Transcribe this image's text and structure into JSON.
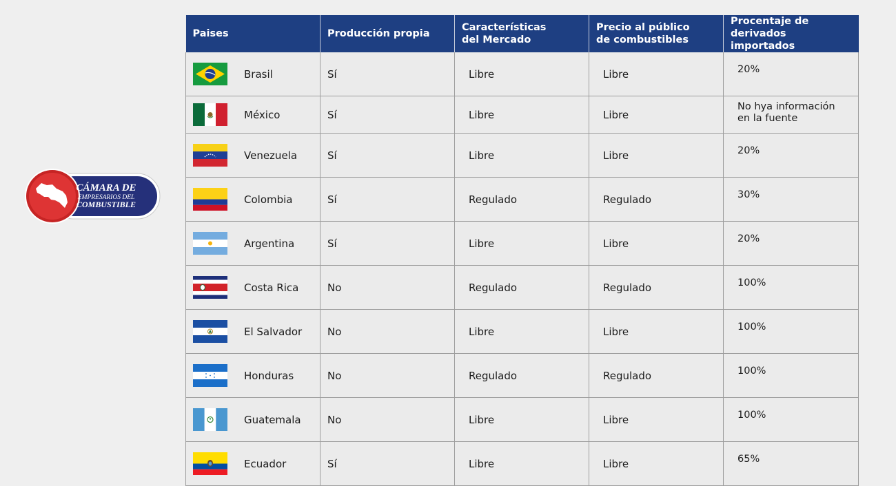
{
  "logo": {
    "line1": "CÁMARA DE",
    "line2": "EMPRESARIOS DEL",
    "line3": "COMBUSTIBLE"
  },
  "headers": {
    "pais": "Paises",
    "produccion": "Producción propia",
    "mercado_1": "Características",
    "mercado_2": "del Mercado",
    "precio_1": "Precio al público",
    "precio_2": "de combustibles",
    "porcentaje_1": "Procentaje de",
    "porcentaje_2": "derivados importados"
  },
  "rows": [
    {
      "flag": "brazil-flag",
      "pais": "Brasil",
      "produccion": "Sí",
      "mercado": "Libre",
      "precio": "Libre",
      "porcentaje": "20%"
    },
    {
      "flag": "mexico-flag",
      "pais": "México",
      "produccion": "Sí",
      "mercado": "Libre",
      "precio": "Libre",
      "porcentaje_1": "No hya información",
      "porcentaje_2": "en la fuente"
    },
    {
      "flag": "venezuela-flag",
      "pais": "Venezuela",
      "produccion": "Sí",
      "mercado": "Libre",
      "precio": "Libre",
      "porcentaje": "20%"
    },
    {
      "flag": "colombia-flag",
      "pais": "Colombia",
      "produccion": "Sí",
      "mercado": "Regulado",
      "precio": "Regulado",
      "porcentaje": "30%"
    },
    {
      "flag": "argentina-flag",
      "pais": "Argentina",
      "produccion": "Sí",
      "mercado": "Libre",
      "precio": "Libre",
      "porcentaje": "20%"
    },
    {
      "flag": "costa-rica-flag",
      "pais": "Costa Rica",
      "produccion": "No",
      "mercado": "Regulado",
      "precio": "Regulado",
      "porcentaje": "100%"
    },
    {
      "flag": "el-salvador-flag",
      "pais": "El Salvador",
      "produccion": "No",
      "mercado": "Libre",
      "precio": "Libre",
      "porcentaje": "100%"
    },
    {
      "flag": "honduras-flag",
      "pais": "Honduras",
      "produccion": "No",
      "mercado": "Regulado",
      "precio": "Regulado",
      "porcentaje": "100%"
    },
    {
      "flag": "guatemala-flag",
      "pais": "Guatemala",
      "produccion": "No",
      "mercado": "Libre",
      "precio": "Libre",
      "porcentaje": "100%"
    },
    {
      "flag": "ecuador-flag",
      "pais": "Ecuador",
      "produccion": "Sí",
      "mercado": "Libre",
      "precio": "Libre",
      "porcentaje": "65%"
    }
  ],
  "colors": {
    "header_bg": "#1e3f82",
    "logo_red": "#d62b2b",
    "logo_blue": "#25307a"
  }
}
